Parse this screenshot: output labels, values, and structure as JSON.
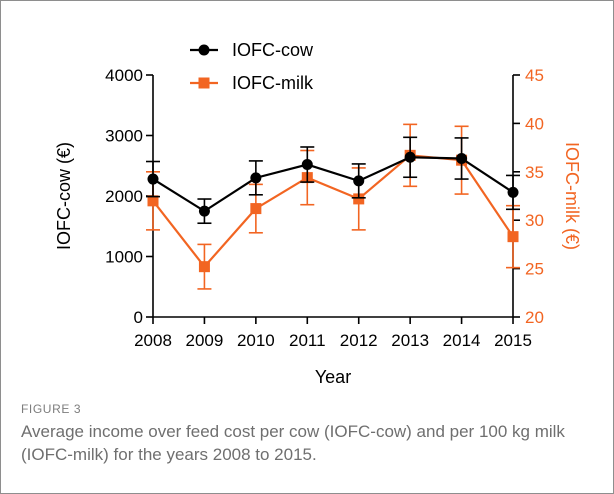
{
  "chart_data": {
    "type": "line",
    "x": [
      "2008",
      "2009",
      "2010",
      "2011",
      "2012",
      "2013",
      "2014",
      "2015"
    ],
    "xlabel": "Year",
    "ylabel_left": "IOFC-cow (€)",
    "ylabel_right": "IOFC-milk (€)",
    "ylim_left": [
      0,
      4000
    ],
    "ylim_right": [
      20,
      45
    ],
    "yticks_left": [
      0,
      1000,
      2000,
      3000,
      4000
    ],
    "yticks_right": [
      20,
      25,
      30,
      35,
      40,
      45
    ],
    "grid": false,
    "legend_position": "top-left",
    "series": [
      {
        "name": "IOFC-cow",
        "axis": "left",
        "marker": "circle",
        "color": "#000000",
        "values": [
          2280,
          1750,
          2300,
          2520,
          2250,
          2640,
          2620,
          2060
        ],
        "error": [
          290,
          200,
          280,
          290,
          280,
          330,
          340,
          280
        ]
      },
      {
        "name": "IOFC-milk",
        "axis": "right",
        "marker": "square",
        "color": "#f26522",
        "values": [
          32.0,
          25.2,
          31.2,
          34.4,
          32.2,
          36.7,
          36.2,
          28.3
        ],
        "error": [
          3.0,
          2.3,
          2.5,
          2.8,
          3.2,
          3.2,
          3.5,
          3.2
        ]
      }
    ]
  },
  "figure": {
    "label": "FIGURE 3",
    "caption": "Average income over feed cost per cow (IOFC-cow) and per 100 kg milk (IOFC-milk) for the years 2008 to 2015."
  }
}
